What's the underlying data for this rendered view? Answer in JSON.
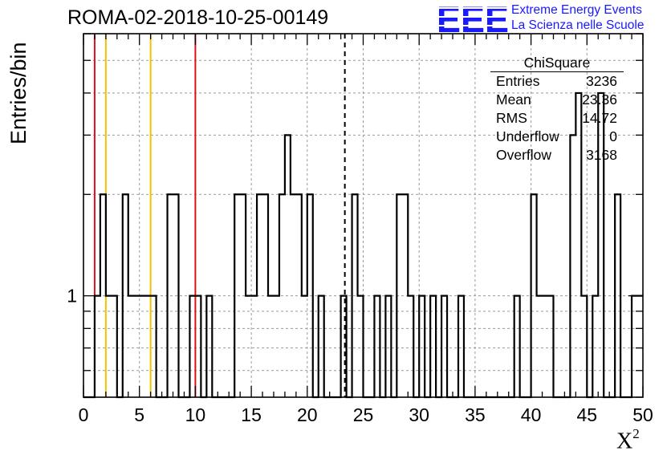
{
  "title": "ROMA-02-2018-10-25-00149",
  "logo": {
    "mark": "EEE",
    "line1": "Extreme Energy Events",
    "line2": "La Scienza nelle Scuole",
    "color": "#1a1aff"
  },
  "stats": {
    "name": "ChiSquare",
    "rows": [
      {
        "label": "Entries",
        "value": "3236"
      },
      {
        "label": "Mean",
        "value": "23.36"
      },
      {
        "label": "RMS",
        "value": "14.72"
      },
      {
        "label": "Underflow",
        "value": "0"
      },
      {
        "label": "Overflow",
        "value": "3168"
      }
    ]
  },
  "chart_data": {
    "type": "bar",
    "title": "ROMA-02-2018-10-25-00149",
    "xlabel": "X²",
    "ylabel": "Entries/bin",
    "x_scale": "linear",
    "y_scale": "log",
    "xlim": [
      0,
      50
    ],
    "ylim": [
      0.5,
      6
    ],
    "grid": true,
    "x_ticks": [
      "0",
      "5",
      "10",
      "15",
      "20",
      "25",
      "30",
      "35",
      "40",
      "45",
      "50"
    ],
    "y_ticks": [
      "1"
    ],
    "bin_width": 0.5,
    "bin_contents": [
      0,
      0,
      1,
      2,
      1,
      1,
      0,
      2,
      1,
      1,
      1,
      1,
      1,
      0,
      0,
      2,
      2,
      0,
      0,
      1,
      1,
      0,
      1,
      0,
      0,
      0,
      0,
      2,
      2,
      1,
      1,
      2,
      2,
      1,
      1,
      2,
      3,
      2,
      2,
      1,
      2,
      0,
      1,
      0,
      0,
      0,
      1,
      0,
      2,
      1,
      0,
      0,
      1,
      0,
      1,
      0,
      2,
      2,
      1,
      0,
      1,
      0,
      1,
      0,
      1,
      0,
      0,
      1,
      0,
      0,
      0,
      0,
      0,
      0,
      0,
      0,
      0,
      1,
      0,
      0,
      2,
      1,
      1,
      1,
      0,
      0,
      0,
      3,
      4,
      1,
      0,
      1,
      4,
      0,
      0,
      2,
      0,
      0,
      1,
      1
    ],
    "vertical_lines": [
      {
        "x": 1,
        "color": "#e0101a",
        "style": "solid"
      },
      {
        "x": 2,
        "color": "#f2c200",
        "style": "solid"
      },
      {
        "x": 6,
        "color": "#f2c200",
        "style": "solid"
      },
      {
        "x": 10,
        "color": "#e0101a",
        "style": "solid"
      },
      {
        "x": 23.36,
        "color": "#000000",
        "style": "dashed"
      }
    ]
  }
}
